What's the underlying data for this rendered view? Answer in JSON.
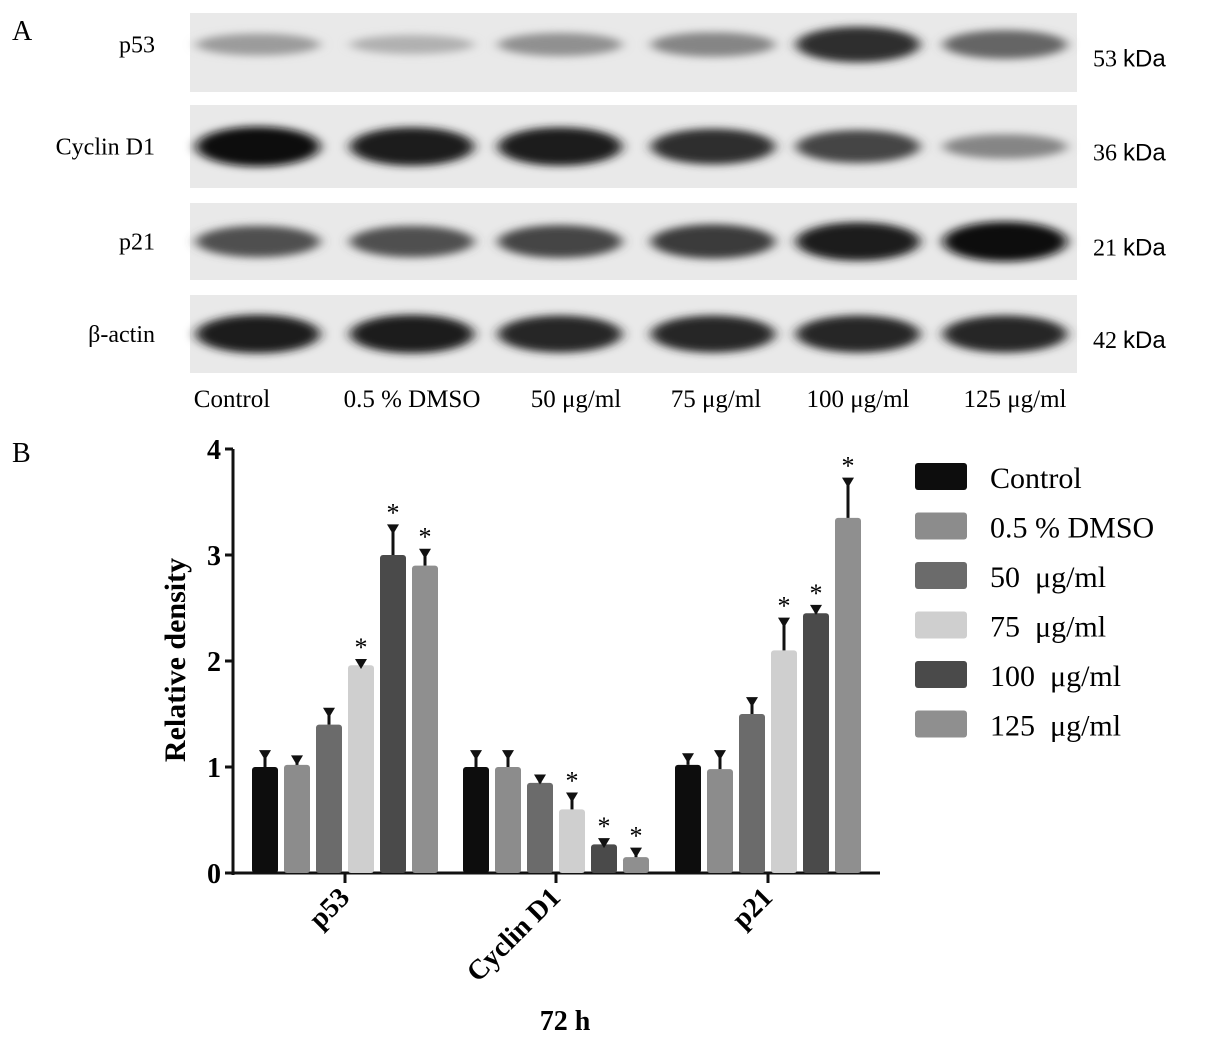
{
  "panel_a": {
    "label": "A",
    "rows": [
      {
        "protein": "p53",
        "kda": "53",
        "bands": [
          0.35,
          0.25,
          0.4,
          0.45,
          0.85,
          0.6
        ]
      },
      {
        "protein": "Cyclin D1",
        "kda": "36",
        "bands": [
          1.0,
          0.95,
          0.95,
          0.85,
          0.75,
          0.45
        ]
      },
      {
        "protein": "p21",
        "kda": "21",
        "bands": [
          0.7,
          0.7,
          0.75,
          0.8,
          0.95,
          1.0
        ]
      },
      {
        "protein": "β-actin",
        "kda": "42",
        "bands": [
          0.95,
          0.95,
          0.9,
          0.9,
          0.9,
          0.9
        ]
      }
    ],
    "kda_unit": "kDa",
    "lanes": [
      "Control",
      "0.5 % DMSO",
      "50 μg/ml",
      "75 μg/ml",
      "100 μg/ml",
      "125 μg/ml"
    ]
  },
  "panel_b": {
    "label": "B"
  },
  "chart_data": {
    "type": "bar",
    "title": "",
    "xlabel": "72 h",
    "ylabel": "Relative density",
    "ylim": [
      0,
      4
    ],
    "yticks": [
      "0",
      "1",
      "2",
      "3",
      "4"
    ],
    "categories": [
      "p53",
      "Cyclin D1",
      "p21"
    ],
    "legend_position": "right",
    "significance_marker": "*",
    "series": [
      {
        "name": "Control",
        "color": "#0d0d0d",
        "values": [
          1.0,
          1.0,
          1.02
        ],
        "errors": [
          0.15,
          0.15,
          0.1
        ],
        "significant": [
          false,
          false,
          false
        ]
      },
      {
        "name": "0.5 % DMSO",
        "color": "#8c8c8c",
        "values": [
          1.02,
          1.0,
          0.98
        ],
        "errors": [
          0.08,
          0.15,
          0.17
        ],
        "significant": [
          false,
          false,
          false
        ]
      },
      {
        "name": "50  μg/ml",
        "color": "#6b6b6b",
        "values": [
          1.4,
          0.85,
          1.5
        ],
        "errors": [
          0.15,
          0.07,
          0.15
        ],
        "significant": [
          false,
          false,
          false
        ]
      },
      {
        "name": "75  μg/ml",
        "color": "#cfcfcf",
        "values": [
          1.96,
          0.6,
          2.1
        ],
        "errors": [
          0.05,
          0.15,
          0.3
        ],
        "significant": [
          true,
          true,
          true
        ]
      },
      {
        "name": "100  μg/ml",
        "color": "#4a4a4a",
        "values": [
          3.0,
          0.27,
          2.45
        ],
        "errors": [
          0.28,
          0.05,
          0.07
        ],
        "significant": [
          true,
          true,
          true
        ]
      },
      {
        "name": "125  μg/ml",
        "color": "#8f8f8f",
        "values": [
          2.9,
          0.15,
          3.35
        ],
        "errors": [
          0.15,
          0.08,
          0.37
        ],
        "significant": [
          true,
          true,
          true
        ]
      }
    ]
  }
}
